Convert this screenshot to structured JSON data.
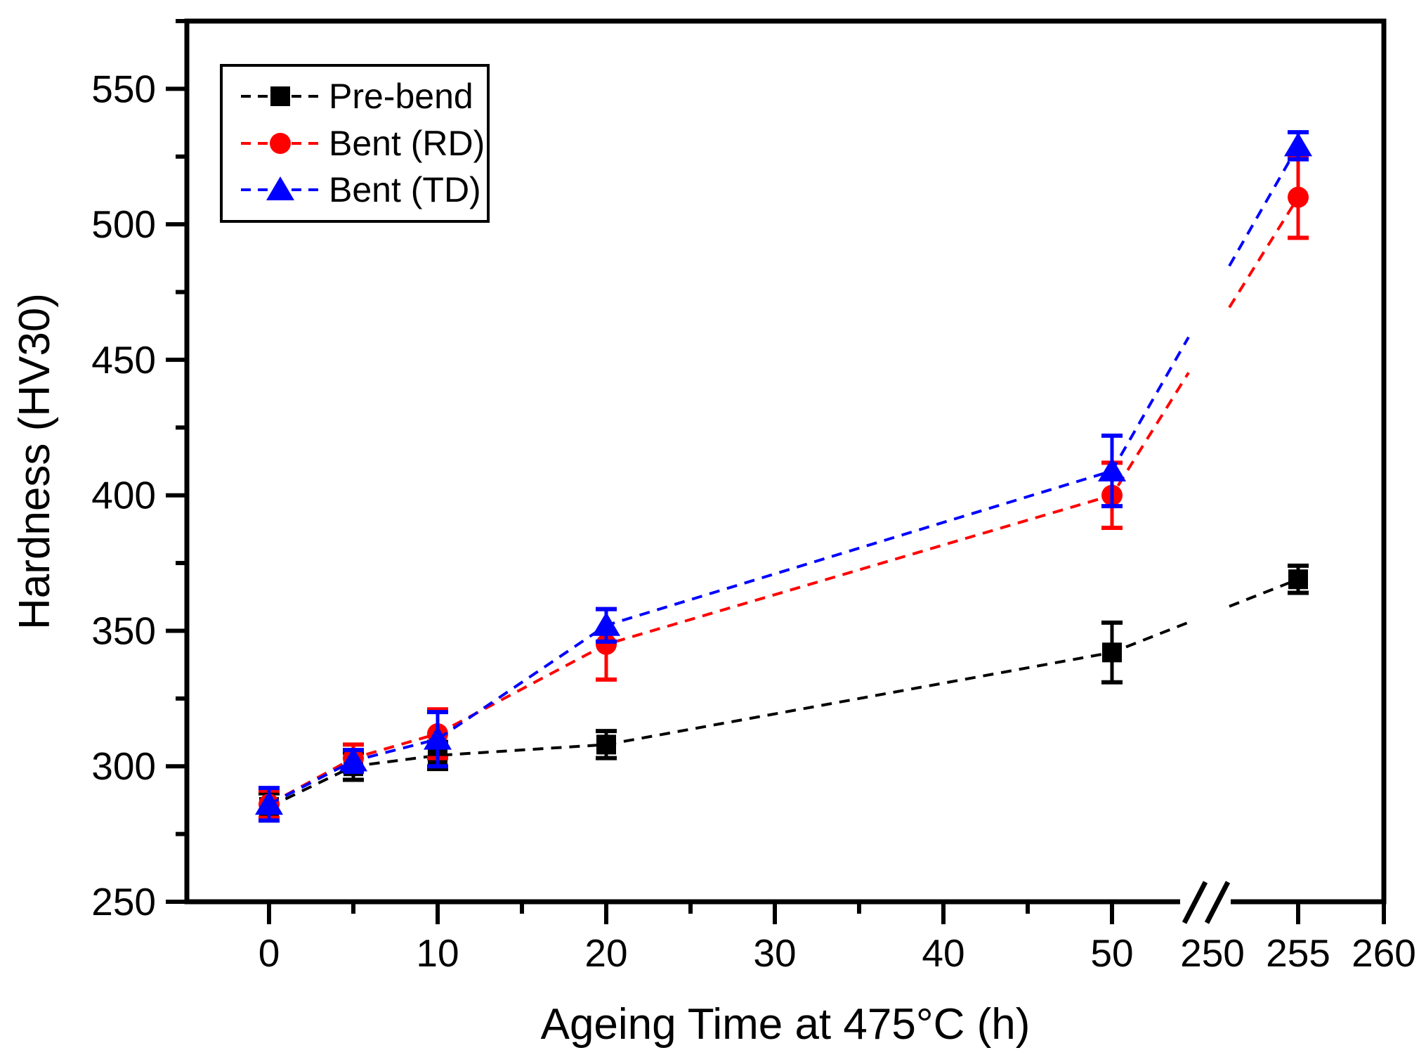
{
  "page": {
    "title": "Hardness vs Ageing Time chart"
  },
  "chart_data": {
    "type": "line",
    "title": "",
    "xlabel": "Ageing Time at 475°C (h)",
    "ylabel": "Hardness (HV30)",
    "ylim": [
      250,
      575
    ],
    "grid": false,
    "legend_position": "top-left",
    "y_major_ticks": [
      250,
      300,
      350,
      400,
      450,
      500,
      550
    ],
    "y_minor_ticks": [
      275,
      325,
      375,
      425,
      475,
      525,
      575
    ],
    "x_major_ticks_left": [
      0,
      10,
      20,
      30,
      40,
      50
    ],
    "x_minor_ticks_left": [
      5,
      15,
      25,
      35,
      45
    ],
    "x_major_ticks_right": [
      255,
      260
    ],
    "x_labels_right": [
      {
        "value": 250,
        "label": "250"
      },
      {
        "value": 255,
        "label": "255"
      },
      {
        "value": 260,
        "label": "260"
      }
    ],
    "axis_break": {
      "between": [
        50,
        250
      ],
      "glyph": "//"
    },
    "x": [
      0,
      5,
      10,
      20,
      50,
      255
    ],
    "series": [
      {
        "name": "Pre-bend",
        "marker": "square",
        "color": "#000000",
        "values": [
          285,
          300,
          304,
          308,
          342,
          369
        ],
        "errors": [
          5,
          5,
          5,
          5,
          11,
          5
        ]
      },
      {
        "name": "Bent (RD)",
        "marker": "circle",
        "color": "#ff0000",
        "values": [
          286,
          303,
          312,
          345,
          400,
          510
        ],
        "errors": [
          5,
          5,
          9,
          13,
          12,
          15
        ]
      },
      {
        "name": "Bent (TD)",
        "marker": "triangle",
        "color": "#0000ff",
        "values": [
          286,
          302,
          310,
          352,
          409,
          529
        ],
        "errors": [
          6,
          4,
          10,
          6,
          13,
          5
        ]
      }
    ]
  }
}
